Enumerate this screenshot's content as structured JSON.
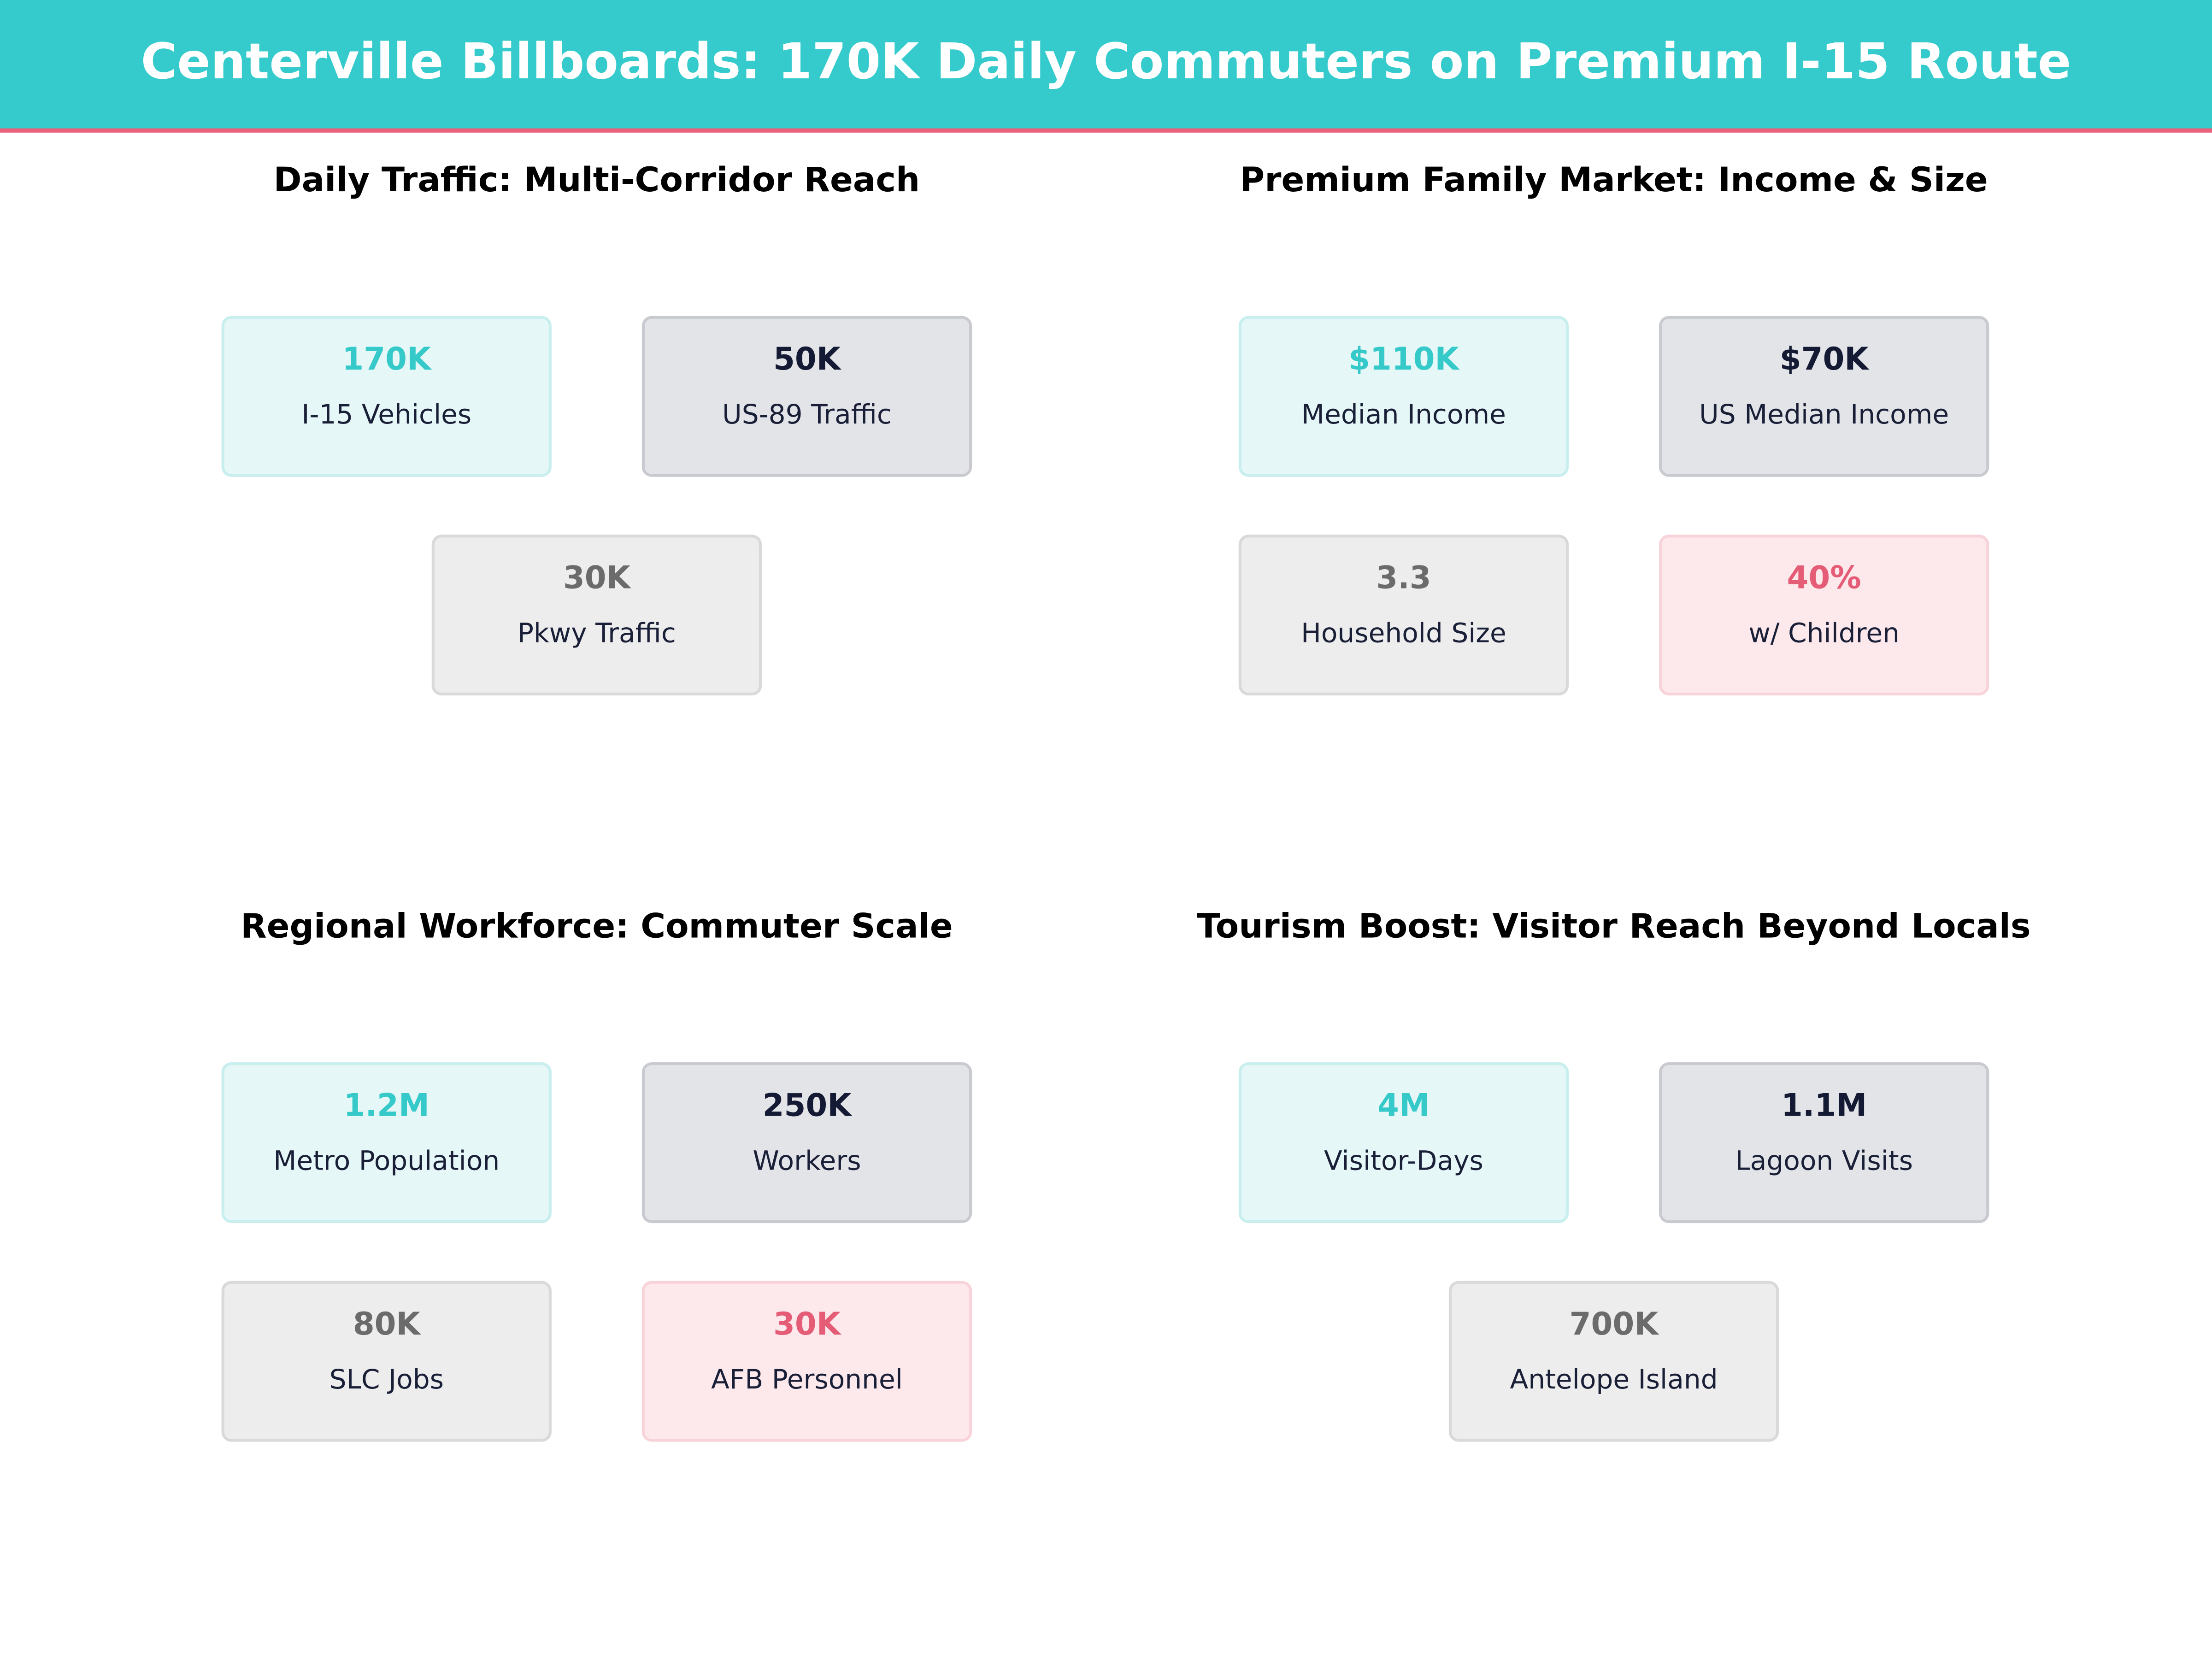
{
  "header": {
    "title": "Centerville Billboards: 170K Daily Commuters on Premium I-15 Route"
  },
  "panels": [
    {
      "title": "Daily Traffic: Multi-Corridor Reach",
      "cards": [
        {
          "value": "170K",
          "label": "I-15  Vehicles"
        },
        {
          "value": "50K",
          "label": "US-89  Traffic"
        },
        {
          "value": "30K",
          "label": "Pkwy Traffic"
        }
      ]
    },
    {
      "title": "Premium Family Market: Income & Size",
      "cards": [
        {
          "value": "$110K",
          "label": "Median Income"
        },
        {
          "value": "$70K",
          "label": "US Median Income"
        },
        {
          "value": "3.3",
          "label": "Household Size"
        },
        {
          "value": "40%",
          "label": "w/ Children"
        }
      ]
    },
    {
      "title": "Regional Workforce: Commuter Scale",
      "cards": [
        {
          "value": "1.2M",
          "label": "Metro Population"
        },
        {
          "value": "250K",
          "label": "Workers"
        },
        {
          "value": "80K",
          "label": "SLC Jobs"
        },
        {
          "value": "30K",
          "label": "AFB Personnel"
        }
      ]
    },
    {
      "title": "Tourism Boost: Visitor Reach Beyond Locals",
      "cards": [
        {
          "value": "4M",
          "label": "Visitor-Days"
        },
        {
          "value": "1.1M",
          "label": "Lagoon Visits"
        },
        {
          "value": "700K",
          "label": "Antelope Island"
        }
      ]
    }
  ]
}
